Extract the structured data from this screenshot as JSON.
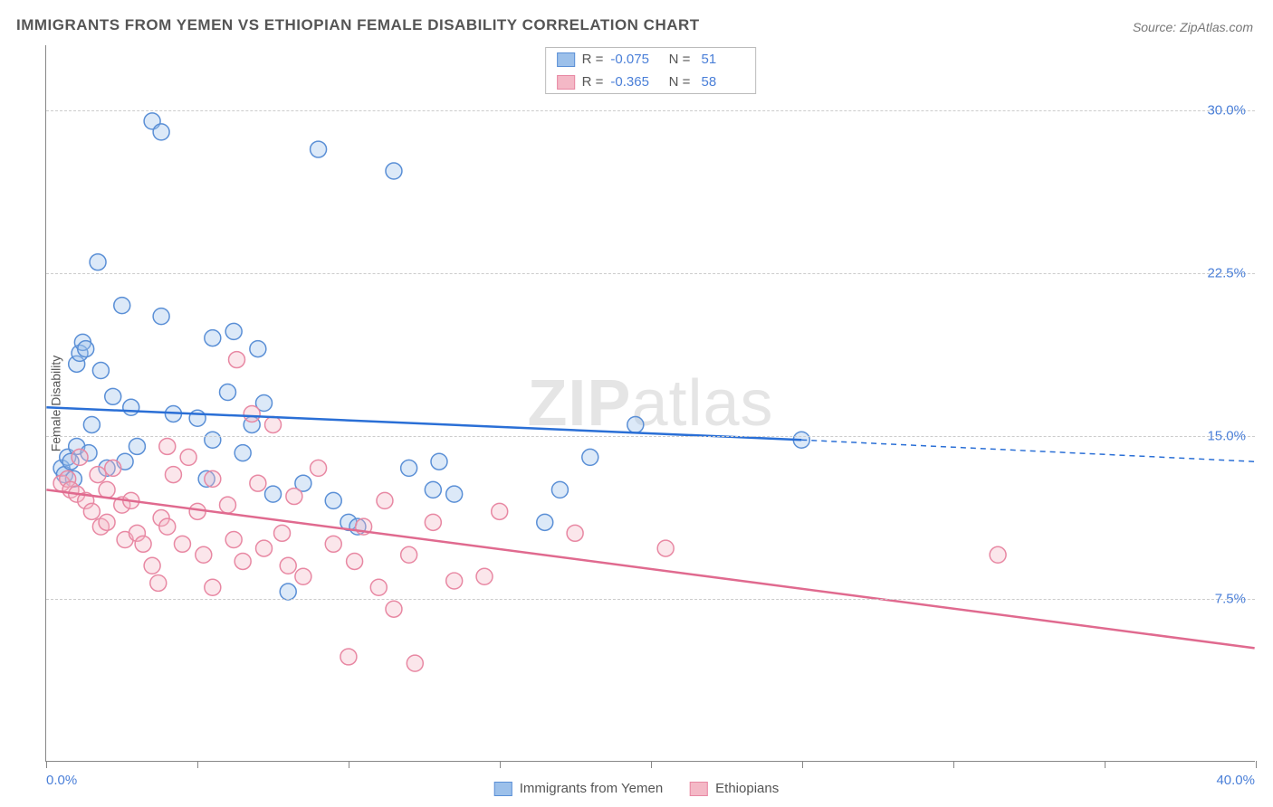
{
  "title": "IMMIGRANTS FROM YEMEN VS ETHIOPIAN FEMALE DISABILITY CORRELATION CHART",
  "source": "Source: ZipAtlas.com",
  "ylabel": "Female Disability",
  "watermark_bold": "ZIP",
  "watermark_light": "atlas",
  "chart": {
    "type": "scatter",
    "xlim": [
      0,
      40
    ],
    "ylim": [
      0,
      33
    ],
    "xtick_positions": [
      0,
      5,
      10,
      15,
      20,
      25,
      30,
      35,
      40
    ],
    "xtick_labels_shown": {
      "left": "0.0%",
      "right": "40.0%"
    },
    "ytick_positions": [
      7.5,
      15.0,
      22.5,
      30.0
    ],
    "ytick_labels": [
      "7.5%",
      "15.0%",
      "22.5%",
      "30.0%"
    ],
    "grid_color": "#cccccc",
    "grid_dash": true,
    "background_color": "#ffffff",
    "axis_color": "#888888",
    "marker_radius": 9,
    "marker_stroke_width": 1.5,
    "marker_fill_opacity": 0.35,
    "trend_line_width": 2.5,
    "series": [
      {
        "name": "Immigrants from Yemen",
        "color_fill": "#9cc0ea",
        "color_stroke": "#5a8fd6",
        "line_color": "#2a6fd6",
        "R": "-0.075",
        "N": "51",
        "trend": {
          "x1": 0,
          "y1": 16.3,
          "x2": 25,
          "y2": 14.8,
          "x2_dash": 40,
          "y2_dash": 13.8
        },
        "points": [
          [
            0.5,
            13.5
          ],
          [
            0.6,
            13.2
          ],
          [
            0.7,
            14.0
          ],
          [
            0.8,
            13.8
          ],
          [
            0.9,
            13.0
          ],
          [
            1.0,
            18.3
          ],
          [
            1.0,
            14.5
          ],
          [
            1.1,
            18.8
          ],
          [
            1.2,
            19.3
          ],
          [
            1.3,
            19.0
          ],
          [
            1.4,
            14.2
          ],
          [
            1.5,
            15.5
          ],
          [
            1.7,
            23.0
          ],
          [
            1.8,
            18.0
          ],
          [
            2.0,
            13.5
          ],
          [
            2.2,
            16.8
          ],
          [
            2.5,
            21.0
          ],
          [
            2.6,
            13.8
          ],
          [
            2.8,
            16.3
          ],
          [
            3.0,
            14.5
          ],
          [
            3.5,
            29.5
          ],
          [
            3.8,
            29.0
          ],
          [
            3.8,
            20.5
          ],
          [
            4.2,
            16.0
          ],
          [
            5.0,
            15.8
          ],
          [
            5.3,
            13.0
          ],
          [
            5.5,
            19.5
          ],
          [
            6.0,
            17.0
          ],
          [
            6.2,
            19.8
          ],
          [
            6.5,
            14.2
          ],
          [
            6.8,
            15.5
          ],
          [
            7.0,
            19.0
          ],
          [
            7.2,
            16.5
          ],
          [
            7.5,
            12.3
          ],
          [
            8.0,
            7.8
          ],
          [
            8.5,
            12.8
          ],
          [
            9.0,
            28.2
          ],
          [
            9.5,
            12.0
          ],
          [
            10.0,
            11.0
          ],
          [
            10.3,
            10.8
          ],
          [
            11.5,
            27.2
          ],
          [
            12.0,
            13.5
          ],
          [
            12.8,
            12.5
          ],
          [
            13.0,
            13.8
          ],
          [
            13.5,
            12.3
          ],
          [
            16.5,
            11.0
          ],
          [
            17.0,
            12.5
          ],
          [
            18.0,
            14.0
          ],
          [
            19.5,
            15.5
          ],
          [
            25.0,
            14.8
          ],
          [
            5.5,
            14.8
          ]
        ]
      },
      {
        "name": "Ethiopians",
        "color_fill": "#f4b8c6",
        "color_stroke": "#e888a3",
        "line_color": "#e06a8f",
        "R": "-0.365",
        "N": "58",
        "trend": {
          "x1": 0,
          "y1": 12.5,
          "x2": 40,
          "y2": 5.2,
          "x2_dash": 40,
          "y2_dash": 5.2
        },
        "points": [
          [
            0.5,
            12.8
          ],
          [
            0.7,
            13.0
          ],
          [
            0.8,
            12.5
          ],
          [
            1.0,
            12.3
          ],
          [
            1.1,
            14.0
          ],
          [
            1.3,
            12.0
          ],
          [
            1.5,
            11.5
          ],
          [
            1.7,
            13.2
          ],
          [
            1.8,
            10.8
          ],
          [
            2.0,
            12.5
          ],
          [
            2.0,
            11.0
          ],
          [
            2.2,
            13.5
          ],
          [
            2.5,
            11.8
          ],
          [
            2.6,
            10.2
          ],
          [
            2.8,
            12.0
          ],
          [
            3.0,
            10.5
          ],
          [
            3.2,
            10.0
          ],
          [
            3.5,
            9.0
          ],
          [
            3.7,
            8.2
          ],
          [
            3.8,
            11.2
          ],
          [
            4.0,
            10.8
          ],
          [
            4.0,
            14.5
          ],
          [
            4.2,
            13.2
          ],
          [
            4.5,
            10.0
          ],
          [
            4.7,
            14.0
          ],
          [
            5.0,
            11.5
          ],
          [
            5.2,
            9.5
          ],
          [
            5.5,
            13.0
          ],
          [
            5.5,
            8.0
          ],
          [
            6.0,
            11.8
          ],
          [
            6.2,
            10.2
          ],
          [
            6.3,
            18.5
          ],
          [
            6.5,
            9.2
          ],
          [
            6.8,
            16.0
          ],
          [
            7.0,
            12.8
          ],
          [
            7.2,
            9.8
          ],
          [
            7.5,
            15.5
          ],
          [
            7.8,
            10.5
          ],
          [
            8.0,
            9.0
          ],
          [
            8.2,
            12.2
          ],
          [
            8.5,
            8.5
          ],
          [
            9.0,
            13.5
          ],
          [
            9.5,
            10.0
          ],
          [
            10.0,
            4.8
          ],
          [
            10.2,
            9.2
          ],
          [
            10.5,
            10.8
          ],
          [
            11.0,
            8.0
          ],
          [
            11.2,
            12.0
          ],
          [
            11.5,
            7.0
          ],
          [
            12.0,
            9.5
          ],
          [
            12.2,
            4.5
          ],
          [
            12.8,
            11.0
          ],
          [
            13.5,
            8.3
          ],
          [
            14.5,
            8.5
          ],
          [
            15.0,
            11.5
          ],
          [
            17.5,
            10.5
          ],
          [
            20.5,
            9.8
          ],
          [
            31.5,
            9.5
          ]
        ]
      }
    ],
    "legend_bottom": [
      {
        "label": "Immigrants from Yemen",
        "fill": "#9cc0ea",
        "stroke": "#5a8fd6"
      },
      {
        "label": "Ethiopians",
        "fill": "#f4b8c6",
        "stroke": "#e888a3"
      }
    ]
  }
}
